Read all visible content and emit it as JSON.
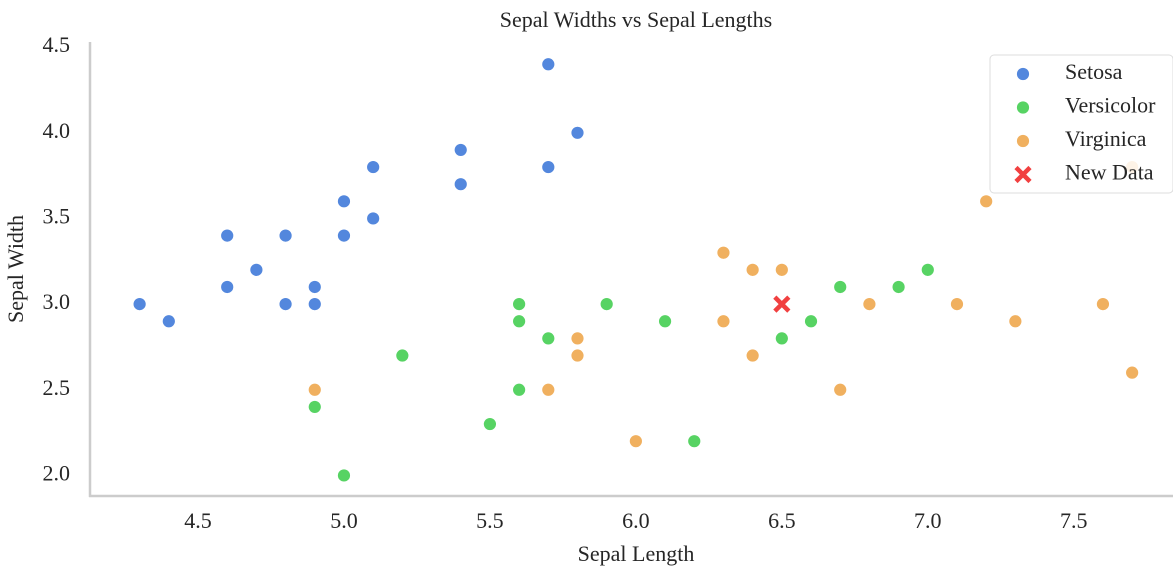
{
  "chart_data": {
    "type": "scatter",
    "title": "Sepal Widths vs Sepal Lengths",
    "x_label": "Sepal Length",
    "y_label": "Sepal Width",
    "xlim": [
      4.13,
      7.84
    ],
    "ylim": [
      1.88,
      4.53
    ],
    "xticks": [
      4.5,
      5.0,
      5.5,
      6.0,
      6.5,
      7.0,
      7.5
    ],
    "yticks": [
      2.0,
      2.5,
      3.0,
      3.5,
      4.0,
      4.5
    ],
    "legend": "upper right",
    "series": [
      {
        "name": "Setosa",
        "color": "#5387dd",
        "marker": "o",
        "x": [
          4.3,
          4.4,
          4.6,
          4.6,
          4.7,
          4.8,
          4.8,
          4.9,
          4.9,
          5.0,
          5.0,
          5.1,
          5.1,
          5.4,
          5.4,
          5.7,
          5.7,
          5.8
        ],
        "values": [
          3.0,
          2.9,
          3.4,
          3.1,
          3.2,
          3.4,
          3.0,
          3.1,
          3.0,
          3.6,
          3.4,
          3.8,
          3.5,
          3.9,
          3.7,
          4.4,
          3.8,
          4.0
        ]
      },
      {
        "name": "Versicolor",
        "color": "#57d363",
        "marker": "o",
        "x": [
          4.9,
          5.0,
          5.2,
          5.5,
          5.6,
          5.6,
          5.6,
          5.7,
          5.9,
          6.1,
          6.2,
          6.5,
          6.6,
          6.7,
          6.9,
          7.0
        ],
        "values": [
          2.4,
          2.0,
          2.7,
          2.3,
          3.0,
          2.9,
          2.5,
          2.8,
          3.0,
          2.9,
          2.2,
          2.8,
          2.9,
          3.1,
          3.1,
          3.2
        ]
      },
      {
        "name": "Virginica",
        "color": "#f0b05f",
        "marker": "o",
        "x": [
          4.9,
          5.7,
          5.8,
          5.8,
          6.0,
          6.3,
          6.3,
          6.4,
          6.4,
          6.5,
          6.7,
          6.8,
          7.1,
          7.2,
          7.3,
          7.6,
          7.7,
          7.7
        ],
        "values": [
          2.5,
          2.5,
          2.8,
          2.7,
          2.2,
          3.3,
          2.9,
          3.2,
          2.7,
          3.2,
          2.5,
          3.0,
          3.0,
          3.6,
          2.9,
          3.0,
          3.8,
          2.6
        ]
      },
      {
        "name": "New Data",
        "color": "#f14040",
        "marker": "x",
        "x": [
          6.5
        ],
        "values": [
          3.0
        ]
      }
    ]
  }
}
